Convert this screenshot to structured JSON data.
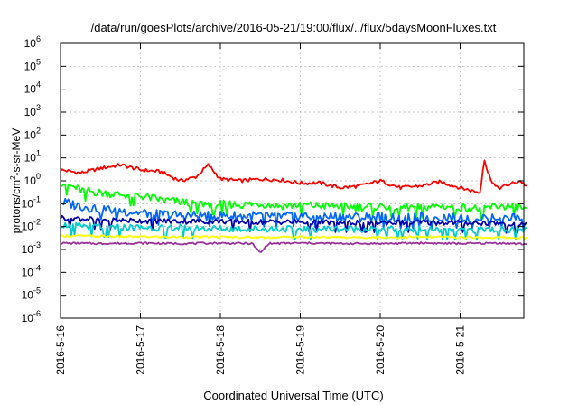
{
  "chart_data": {
    "type": "line",
    "title": "/data/run/goesPlots/archive/2016-05-21/19:00/flux/../flux/5daysMoonFluxes.txt",
    "xlabel": "Coordinated Universal Time (UTC)",
    "ylabel": {
      "pre": "protons/cm",
      "sup": "2",
      "post": "-s-sr-MeV"
    },
    "x_ticks": [
      "2016-5-16",
      "2016-5-17",
      "2016-5-18",
      "2016-5-19",
      "2016-5-20",
      "2016-5-21"
    ],
    "xlim_days": [
      0,
      5.83
    ],
    "y_scale": "log",
    "ylim": [
      1e-06,
      1000000.0
    ],
    "y_ticks": [
      {
        "base": "10",
        "exp": "-6",
        "value": 1e-06
      },
      {
        "base": "10",
        "exp": "-5",
        "value": 1e-05
      },
      {
        "base": "10",
        "exp": "-4",
        "value": 0.0001
      },
      {
        "base": "10",
        "exp": "-3",
        "value": 0.001
      },
      {
        "base": "10",
        "exp": "-2",
        "value": 0.01
      },
      {
        "base": "10",
        "exp": "-1",
        "value": 0.1
      },
      {
        "base": "10",
        "exp": "0",
        "value": 1
      },
      {
        "base": "10",
        "exp": "1",
        "value": 10
      },
      {
        "base": "10",
        "exp": "2",
        "value": 100
      },
      {
        "base": "10",
        "exp": "3",
        "value": 1000
      },
      {
        "base": "10",
        "exp": "4",
        "value": 10000
      },
      {
        "base": "10",
        "exp": "5",
        "value": 100000
      },
      {
        "base": "10",
        "exp": "6",
        "value": 1000000
      }
    ],
    "grid": true,
    "series": [
      {
        "color": "#ff0000",
        "x": [
          0,
          0.25,
          0.5,
          0.75,
          1,
          1.25,
          1.5,
          1.7,
          1.85,
          2,
          2.25,
          2.5,
          2.75,
          3,
          3.25,
          3.5,
          3.75,
          4,
          4.25,
          4.5,
          4.75,
          5,
          5.25,
          5.3,
          5.35,
          5.45,
          5.5,
          5.75,
          5.83
        ],
        "y": [
          3,
          2.2,
          3.5,
          5,
          3,
          2.5,
          1,
          1.5,
          5,
          1.2,
          1,
          1.2,
          1.1,
          0.8,
          0.8,
          0.5,
          0.6,
          1,
          0.5,
          0.6,
          0.9,
          0.5,
          0.3,
          10,
          2,
          0.5,
          0.5,
          1,
          0.6
        ]
      },
      {
        "color": "#00ff00",
        "x": [
          0,
          0.25,
          0.5,
          0.75,
          1,
          1.25,
          1.5,
          1.75,
          2,
          2.25,
          2.5,
          2.75,
          3,
          3.25,
          3.5,
          3.75,
          4,
          4.25,
          4.5,
          4.75,
          5,
          5.25,
          5.5,
          5.75,
          5.83
        ],
        "y": [
          0.9,
          0.4,
          0.3,
          0.25,
          0.22,
          0.15,
          0.12,
          0.1,
          0.1,
          0.09,
          0.1,
          0.08,
          0.09,
          0.08,
          0.08,
          0.07,
          0.08,
          0.07,
          0.07,
          0.08,
          0.07,
          0.06,
          0.08,
          0.07,
          0.05
        ]
      },
      {
        "color": "#0066ff",
        "x": [
          0,
          0.25,
          0.5,
          0.75,
          1,
          1.25,
          1.5,
          1.75,
          2,
          2.25,
          2.5,
          2.75,
          3,
          3.25,
          3.5,
          3.75,
          4,
          4.25,
          4.5,
          4.75,
          5,
          5.25,
          5.5,
          5.75,
          5.83
        ],
        "y": [
          0.12,
          0.08,
          0.06,
          0.05,
          0.04,
          0.035,
          0.03,
          0.03,
          0.03,
          0.028,
          0.03,
          0.028,
          0.03,
          0.026,
          0.028,
          0.025,
          0.027,
          0.024,
          0.025,
          0.027,
          0.025,
          0.024,
          0.028,
          0.026,
          0.02
        ]
      },
      {
        "color": "#0000aa",
        "x": [
          0,
          0.5,
          1,
          1.5,
          2,
          2.5,
          3,
          3.5,
          4,
          4.5,
          5,
          5.5,
          5.83
        ],
        "y": [
          0.025,
          0.02,
          0.018,
          0.017,
          0.017,
          0.016,
          0.016,
          0.015,
          0.015,
          0.015,
          0.015,
          0.014,
          0.013
        ]
      },
      {
        "color": "#00cccc",
        "x": [
          0,
          0.5,
          1,
          1.5,
          2,
          2.5,
          3,
          3.5,
          4,
          4.5,
          5,
          5.5,
          5.83
        ],
        "y": [
          0.012,
          0.01,
          0.009,
          0.009,
          0.008,
          0.008,
          0.008,
          0.008,
          0.008,
          0.008,
          0.007,
          0.008,
          0.007
        ]
      },
      {
        "color": "#ffff00",
        "x": [
          0,
          0.5,
          1,
          1.5,
          2,
          2.5,
          3,
          3.5,
          4,
          4.5,
          5,
          5.5,
          5.83
        ],
        "y": [
          0.004,
          0.0038,
          0.0036,
          0.0035,
          0.0035,
          0.0034,
          0.0035,
          0.0034,
          0.0034,
          0.0035,
          0.0034,
          0.0033,
          0.0032
        ]
      },
      {
        "color": "#993399",
        "x": [
          0,
          0.5,
          1,
          1.5,
          2,
          2.4,
          2.5,
          2.6,
          3,
          3.5,
          4,
          4.5,
          5,
          5.5,
          5.83
        ],
        "y": [
          0.0019,
          0.0018,
          0.0019,
          0.0018,
          0.0019,
          0.0018,
          0.0007,
          0.0018,
          0.0019,
          0.0018,
          0.0018,
          0.0019,
          0.0018,
          0.0019,
          0.0017
        ]
      }
    ]
  }
}
